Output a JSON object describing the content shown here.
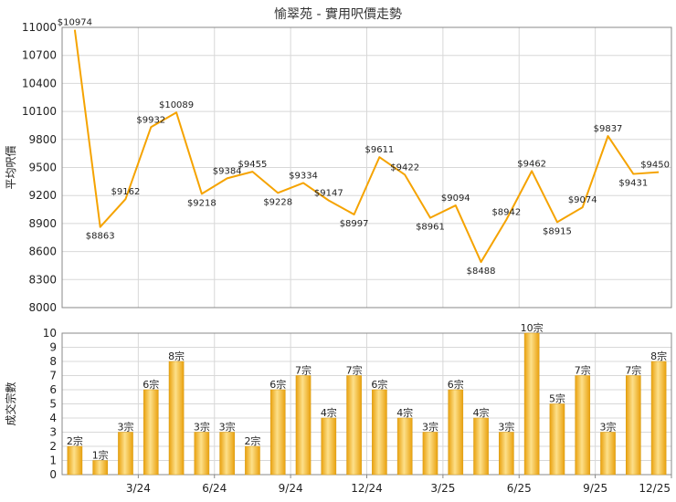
{
  "title": "愉翠苑 - 實用呎價走勢",
  "colors": {
    "line": "#f5a300",
    "bar_light": "#fde08a",
    "bar_dark": "#e9a10e",
    "grid": "#d8d8d8",
    "axis": "#888888"
  },
  "chart_data": [
    {
      "type": "line",
      "ylabel": "平均呎價",
      "ylim": [
        8000,
        11000
      ],
      "yticks": [
        8000,
        8300,
        8600,
        8900,
        9200,
        9500,
        9800,
        10100,
        10400,
        10700,
        11000
      ],
      "grid": true,
      "values": [
        10974,
        8863,
        9162,
        9932,
        10089,
        9218,
        9384,
        9455,
        9228,
        9334,
        9147,
        8997,
        9611,
        9422,
        8961,
        9094,
        8488,
        8942,
        9462,
        8915,
        9074,
        9837,
        9431,
        9450
      ],
      "point_labels": [
        "$10974",
        "$8863",
        "$9162",
        "$9932",
        "$10089",
        "$9218",
        "$9384",
        "$9455",
        "$9228",
        "$9334",
        "$9147",
        "$8997",
        "$9611",
        "$9422",
        "$8961",
        "$9094",
        "$8488",
        "$8942",
        "$9462",
        "$8915",
        "$9074",
        "$9837",
        "$9431",
        "$9450"
      ]
    },
    {
      "type": "bar",
      "ylabel": "成交宗數",
      "ylim": [
        0,
        10
      ],
      "yticks": [
        0,
        1,
        2,
        3,
        4,
        5,
        6,
        7,
        8,
        9,
        10
      ],
      "grid": true,
      "values": [
        2,
        1,
        3,
        6,
        8,
        3,
        3,
        2,
        6,
        7,
        4,
        7,
        6,
        4,
        3,
        6,
        4,
        3,
        10,
        5,
        7,
        3,
        7,
        8
      ],
      "bar_labels": [
        "2宗",
        "1宗",
        "3宗",
        "6宗",
        "8宗",
        "3宗",
        "3宗",
        "2宗",
        "6宗",
        "7宗",
        "4宗",
        "7宗",
        "6宗",
        "4宗",
        "3宗",
        "6宗",
        "4宗",
        "3宗",
        "10宗",
        "5宗",
        "7宗",
        "3宗",
        "7宗",
        "8宗"
      ],
      "x_tick_labels": [
        "3/24",
        "6/24",
        "9/24",
        "12/24",
        "3/25",
        "6/25",
        "9/25",
        "12/25"
      ],
      "x_tick_indices": [
        2,
        5,
        8,
        11,
        14,
        17,
        20,
        23
      ]
    }
  ]
}
